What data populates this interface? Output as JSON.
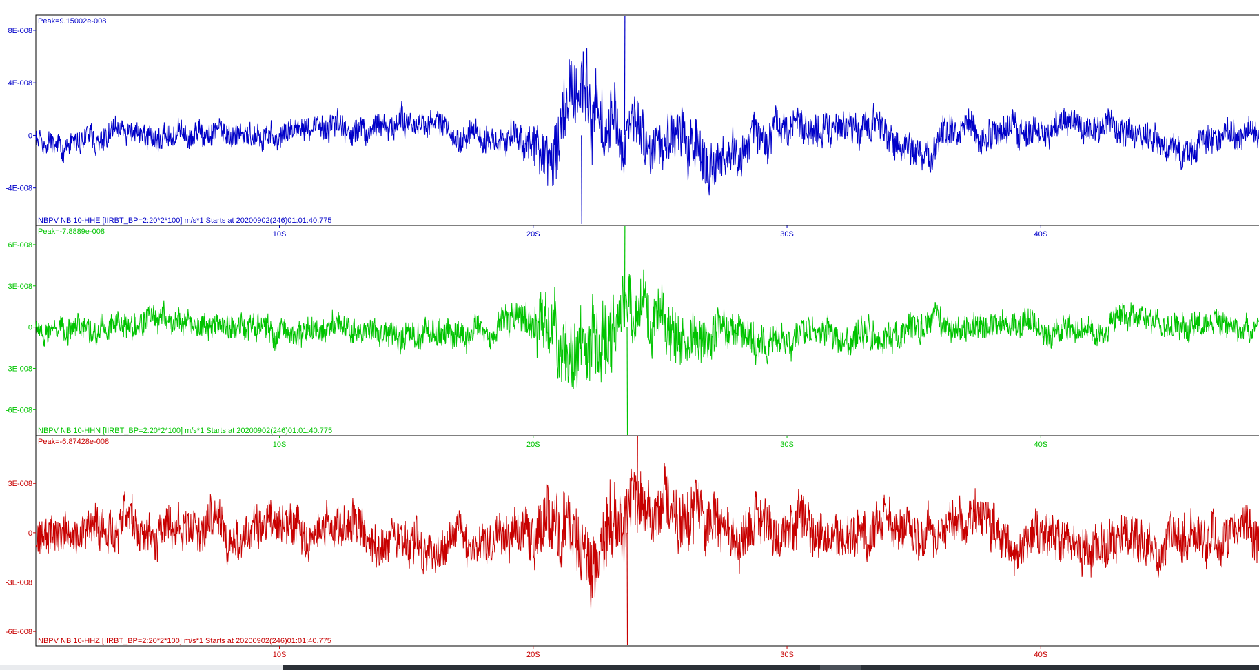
{
  "chart_data": [
    {
      "type": "line",
      "channel": "HHE",
      "color": "#0000c8",
      "peak_label": "Peak=9.15002e-008",
      "trace_label": "NBPV NB 10-HHE  [IIRBT_BP=2:20*2*100] m/s*1 Starts at 20200902(246)01:01:40.775",
      "y_ticks": [
        {
          "label": "8E-008",
          "value": 8e-08
        },
        {
          "label": "4E-008",
          "value": 4e-08
        },
        {
          "label": "0",
          "value": 0
        },
        {
          "label": "-4E-008",
          "value": -4e-08
        }
      ],
      "ylim": [
        -6.85e-08,
        9.15e-08
      ],
      "x_ticks": [
        {
          "label": "10S",
          "value": 10
        },
        {
          "label": "20S",
          "value": 20
        },
        {
          "label": "30S",
          "value": 30
        },
        {
          "label": "40S",
          "value": 40
        }
      ],
      "xlim": [
        0.4,
        48.6
      ],
      "peak": {
        "x": 23.6,
        "y": 9.15002e-08
      },
      "trough": {
        "x": 21.9,
        "y": -6.8e-08
      },
      "envelope": {
        "x": [
          0,
          5,
          10,
          15,
          18,
          19.5,
          20.5,
          21.5,
          22,
          23,
          24,
          25,
          26,
          27,
          28,
          30,
          33,
          36,
          40,
          44,
          48.6
        ],
        "y": [
          1.3e-08,
          1.5e-08,
          1.5e-08,
          1.6e-08,
          1.6e-08,
          1.9e-08,
          3.5e-08,
          4.2e-08,
          4.5e-08,
          4.2e-08,
          3.5e-08,
          3.2e-08,
          3.6e-08,
          3e-08,
          2.4e-08,
          2e-08,
          2e-08,
          1.9e-08,
          1.8e-08,
          1.8e-08,
          1.7e-08
        ]
      },
      "seed": 11
    },
    {
      "type": "line",
      "channel": "HHN",
      "color": "#00c400",
      "peak_label": "Peak=-7.8889e-008",
      "trace_label": "NBPV NB 10-HHN  [IIRBT_BP=2:20*2*100] m/s*1 Starts at 20200902(246)01:01:40.775",
      "y_ticks": [
        {
          "label": "6E-008",
          "value": 6e-08
        },
        {
          "label": "3E-008",
          "value": 3e-08
        },
        {
          "label": "0",
          "value": 0
        },
        {
          "label": "-3E-008",
          "value": -3e-08
        },
        {
          "label": "-6E-008",
          "value": -6e-08
        }
      ],
      "ylim": [
        -7.8889e-08,
        7.4e-08
      ],
      "x_ticks": [
        {
          "label": "10S",
          "value": 10
        },
        {
          "label": "20S",
          "value": 20
        },
        {
          "label": "30S",
          "value": 30
        },
        {
          "label": "40S",
          "value": 40
        }
      ],
      "xlim": [
        0.4,
        48.6
      ],
      "peak": {
        "x": 23.6,
        "y": 7.4e-08
      },
      "trough": {
        "x": 23.7,
        "y": -7.8889e-08
      },
      "envelope": {
        "x": [
          0,
          5,
          10,
          15,
          18,
          19.5,
          20.5,
          21.5,
          22,
          23,
          24,
          25,
          26,
          27,
          28,
          30,
          33,
          36,
          40,
          44,
          48.6
        ],
        "y": [
          1.3e-08,
          1.6e-08,
          1.5e-08,
          1.6e-08,
          1.5e-08,
          2e-08,
          3.8e-08,
          4.5e-08,
          4.8e-08,
          4.6e-08,
          4e-08,
          3.3e-08,
          2.9e-08,
          2.5e-08,
          2.2e-08,
          1.8e-08,
          1.8e-08,
          1.7e-08,
          1.6e-08,
          1.5e-08,
          1.4e-08
        ]
      },
      "seed": 23
    },
    {
      "type": "line",
      "channel": "HHZ",
      "color": "#c80000",
      "peak_label": "Peak=-6.87428e-008",
      "trace_label": "NBPV NB 10-HHZ  [IIRBT_BP=2:20*2*100] m/s*1 Starts at 20200902(246)01:01:40.775",
      "y_ticks": [
        {
          "label": "3E-008",
          "value": 3e-08
        },
        {
          "label": "0",
          "value": 0
        },
        {
          "label": "-3E-008",
          "value": -3e-08
        },
        {
          "label": "-6E-008",
          "value": -6e-08
        }
      ],
      "ylim": [
        -6.87428e-08,
        5.9e-08
      ],
      "x_ticks": [
        {
          "label": "10S",
          "value": 10
        },
        {
          "label": "20S",
          "value": 20
        },
        {
          "label": "30S",
          "value": 30
        },
        {
          "label": "40S",
          "value": 40
        }
      ],
      "xlim": [
        0.4,
        48.6
      ],
      "peak": {
        "x": 24.1,
        "y": 5.9e-08
      },
      "trough": {
        "x": 23.7,
        "y": -6.87428e-08
      },
      "envelope": {
        "x": [
          0,
          5,
          10,
          15,
          18,
          19.5,
          20.5,
          21.5,
          22,
          23,
          24,
          25,
          26,
          27,
          28,
          30,
          33,
          36,
          40,
          44,
          48.6
        ],
        "y": [
          1.8e-08,
          2.2e-08,
          2e-08,
          2.1e-08,
          2.1e-08,
          2.4e-08,
          3e-08,
          3.4e-08,
          3.8e-08,
          4.2e-08,
          3.6e-08,
          3e-08,
          3.1e-08,
          2.8e-08,
          2.5e-08,
          2.3e-08,
          2.3e-08,
          2.2e-08,
          2.2e-08,
          2.4e-08,
          2.3e-08
        ]
      },
      "seed": 37
    }
  ]
}
